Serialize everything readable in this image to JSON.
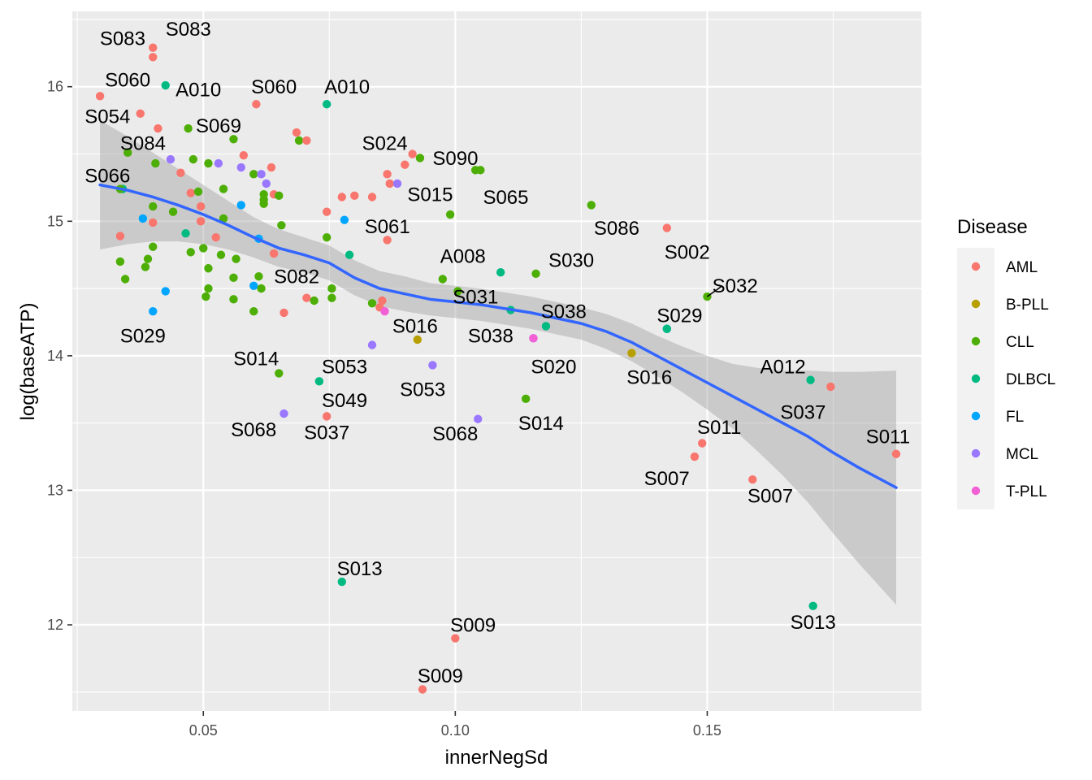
{
  "chart_data": {
    "type": "scatter",
    "xlabel": "innerNegSd",
    "ylabel": "log(baseATP)",
    "xlim": [
      0.024,
      0.1925
    ],
    "ylim": [
      11.36,
      16.56
    ],
    "xticks": [
      0.05,
      0.1,
      0.15
    ],
    "xtick_labels": [
      "0.05",
      "0.10",
      "0.15"
    ],
    "yticks": [
      12,
      13,
      14,
      15,
      16
    ],
    "ytick_labels": [
      "12",
      "13",
      "14",
      "15",
      "16"
    ],
    "grid": true,
    "legend": {
      "title": "Disease",
      "placement": "right",
      "entries": [
        {
          "name": "AML",
          "color": "#F8766D"
        },
        {
          "name": "B-PLL",
          "color": "#B79F00"
        },
        {
          "name": "CLL",
          "color": "#4DAF05"
        },
        {
          "name": "DLBCL",
          "color": "#00BA82"
        },
        {
          "name": "FL",
          "color": "#00A5FF"
        },
        {
          "name": "MCL",
          "color": "#9A77FF"
        },
        {
          "name": "T-PLL",
          "color": "#F35FD5"
        }
      ]
    },
    "colors": {
      "panel": "#EBEBEB",
      "grid": "#FFFFFF",
      "smooth_line": "#3366FF",
      "ribbon": "#999999"
    },
    "points": [
      {
        "x": 0.04,
        "y": 16.29,
        "g": "AML"
      },
      {
        "x": 0.04,
        "y": 16.22,
        "g": "AML"
      },
      {
        "x": 0.0295,
        "y": 15.93,
        "g": "AML"
      },
      {
        "x": 0.0425,
        "y": 16.01,
        "g": "DLBCL"
      },
      {
        "x": 0.0605,
        "y": 15.87,
        "g": "AML"
      },
      {
        "x": 0.0745,
        "y": 15.87,
        "g": "DLBCL"
      },
      {
        "x": 0.0375,
        "y": 15.8,
        "g": "AML"
      },
      {
        "x": 0.041,
        "y": 15.69,
        "g": "AML"
      },
      {
        "x": 0.047,
        "y": 15.69,
        "g": "CLL"
      },
      {
        "x": 0.056,
        "y": 15.61,
        "g": "CLL"
      },
      {
        "x": 0.0685,
        "y": 15.66,
        "g": "AML"
      },
      {
        "x": 0.069,
        "y": 15.6,
        "g": "CLL"
      },
      {
        "x": 0.0705,
        "y": 15.6,
        "g": "AML"
      },
      {
        "x": 0.035,
        "y": 15.51,
        "g": "CLL"
      },
      {
        "x": 0.0405,
        "y": 15.43,
        "g": "CLL"
      },
      {
        "x": 0.0435,
        "y": 15.46,
        "g": "MCL"
      },
      {
        "x": 0.048,
        "y": 15.46,
        "g": "CLL"
      },
      {
        "x": 0.051,
        "y": 15.43,
        "g": "CLL"
      },
      {
        "x": 0.053,
        "y": 15.43,
        "g": "MCL"
      },
      {
        "x": 0.058,
        "y": 15.49,
        "g": "AML"
      },
      {
        "x": 0.0455,
        "y": 15.36,
        "g": "AML"
      },
      {
        "x": 0.0575,
        "y": 15.4,
        "g": "MCL"
      },
      {
        "x": 0.06,
        "y": 15.35,
        "g": "CLL"
      },
      {
        "x": 0.0615,
        "y": 15.35,
        "g": "MCL"
      },
      {
        "x": 0.0635,
        "y": 15.4,
        "g": "AML"
      },
      {
        "x": 0.0625,
        "y": 15.28,
        "g": "MCL"
      },
      {
        "x": 0.034,
        "y": 15.24,
        "g": "DLBCL"
      },
      {
        "x": 0.0335,
        "y": 15.24,
        "g": "CLL"
      },
      {
        "x": 0.0475,
        "y": 15.21,
        "g": "AML"
      },
      {
        "x": 0.049,
        "y": 15.22,
        "g": "CLL"
      },
      {
        "x": 0.054,
        "y": 15.24,
        "g": "CLL"
      },
      {
        "x": 0.062,
        "y": 15.2,
        "g": "CLL"
      },
      {
        "x": 0.064,
        "y": 15.2,
        "g": "AML"
      },
      {
        "x": 0.065,
        "y": 15.19,
        "g": "CLL"
      },
      {
        "x": 0.062,
        "y": 15.16,
        "g": "CLL"
      },
      {
        "x": 0.062,
        "y": 15.13,
        "g": "CLL"
      },
      {
        "x": 0.04,
        "y": 15.11,
        "g": "CLL"
      },
      {
        "x": 0.0495,
        "y": 15.11,
        "g": "AML"
      },
      {
        "x": 0.0575,
        "y": 15.12,
        "g": "FL"
      },
      {
        "x": 0.044,
        "y": 15.07,
        "g": "CLL"
      },
      {
        "x": 0.038,
        "y": 15.02,
        "g": "FL"
      },
      {
        "x": 0.04,
        "y": 14.99,
        "g": "AML"
      },
      {
        "x": 0.0495,
        "y": 15.0,
        "g": "AML"
      },
      {
        "x": 0.054,
        "y": 15.02,
        "g": "CLL"
      },
      {
        "x": 0.0655,
        "y": 14.97,
        "g": "CLL"
      },
      {
        "x": 0.0335,
        "y": 14.89,
        "g": "AML"
      },
      {
        "x": 0.0525,
        "y": 14.88,
        "g": "AML"
      },
      {
        "x": 0.061,
        "y": 14.87,
        "g": "FL"
      },
      {
        "x": 0.0745,
        "y": 14.88,
        "g": "CLL"
      },
      {
        "x": 0.04,
        "y": 14.81,
        "g": "CLL"
      },
      {
        "x": 0.05,
        "y": 14.8,
        "g": "CLL"
      },
      {
        "x": 0.0475,
        "y": 14.77,
        "g": "CLL"
      },
      {
        "x": 0.039,
        "y": 14.72,
        "g": "CLL"
      },
      {
        "x": 0.0335,
        "y": 14.7,
        "g": "CLL"
      },
      {
        "x": 0.0465,
        "y": 14.91,
        "g": "DLBCL"
      },
      {
        "x": 0.0535,
        "y": 14.75,
        "g": "CLL"
      },
      {
        "x": 0.0565,
        "y": 14.72,
        "g": "CLL"
      },
      {
        "x": 0.064,
        "y": 14.76,
        "g": "AML"
      },
      {
        "x": 0.079,
        "y": 14.75,
        "g": "DLBCL"
      },
      {
        "x": 0.0385,
        "y": 14.66,
        "g": "CLL"
      },
      {
        "x": 0.051,
        "y": 14.65,
        "g": "CLL"
      },
      {
        "x": 0.0345,
        "y": 14.57,
        "g": "CLL"
      },
      {
        "x": 0.056,
        "y": 14.58,
        "g": "CLL"
      },
      {
        "x": 0.061,
        "y": 14.59,
        "g": "CLL"
      },
      {
        "x": 0.0425,
        "y": 14.48,
        "g": "FL"
      },
      {
        "x": 0.051,
        "y": 14.5,
        "g": "CLL"
      },
      {
        "x": 0.06,
        "y": 14.52,
        "g": "FL"
      },
      {
        "x": 0.0615,
        "y": 14.5,
        "g": "CLL"
      },
      {
        "x": 0.0755,
        "y": 14.5,
        "g": "CLL"
      },
      {
        "x": 0.0505,
        "y": 14.44,
        "g": "CLL"
      },
      {
        "x": 0.056,
        "y": 14.42,
        "g": "CLL"
      },
      {
        "x": 0.0705,
        "y": 14.43,
        "g": "AML"
      },
      {
        "x": 0.072,
        "y": 14.41,
        "g": "CLL"
      },
      {
        "x": 0.0755,
        "y": 14.43,
        "g": "CLL"
      },
      {
        "x": 0.04,
        "y": 14.33,
        "g": "FL"
      },
      {
        "x": 0.06,
        "y": 14.33,
        "g": "CLL"
      },
      {
        "x": 0.066,
        "y": 14.32,
        "g": "AML"
      },
      {
        "x": 0.0835,
        "y": 14.39,
        "g": "CLL"
      },
      {
        "x": 0.085,
        "y": 14.36,
        "g": "AML"
      },
      {
        "x": 0.0855,
        "y": 14.41,
        "g": "AML"
      },
      {
        "x": 0.086,
        "y": 14.33,
        "g": "T-PLL"
      },
      {
        "x": 0.0835,
        "y": 14.08,
        "g": "MCL"
      },
      {
        "x": 0.065,
        "y": 13.87,
        "g": "CLL"
      },
      {
        "x": 0.073,
        "y": 13.81,
        "g": "DLBCL"
      },
      {
        "x": 0.066,
        "y": 13.57,
        "g": "MCL"
      },
      {
        "x": 0.0745,
        "y": 13.55,
        "g": "AML"
      },
      {
        "x": 0.0775,
        "y": 15.18,
        "g": "AML"
      },
      {
        "x": 0.08,
        "y": 15.19,
        "g": "AML"
      },
      {
        "x": 0.0835,
        "y": 15.18,
        "g": "AML"
      },
      {
        "x": 0.0745,
        "y": 15.07,
        "g": "AML"
      },
      {
        "x": 0.078,
        "y": 15.01,
        "g": "FL"
      },
      {
        "x": 0.0865,
        "y": 14.86,
        "g": "AML"
      },
      {
        "x": 0.0865,
        "y": 15.35,
        "g": "AML"
      },
      {
        "x": 0.087,
        "y": 15.28,
        "g": "AML"
      },
      {
        "x": 0.0885,
        "y": 15.28,
        "g": "MCL"
      },
      {
        "x": 0.09,
        "y": 15.42,
        "g": "AML"
      },
      {
        "x": 0.0915,
        "y": 15.5,
        "g": "AML"
      },
      {
        "x": 0.093,
        "y": 15.47,
        "g": "CLL"
      },
      {
        "x": 0.104,
        "y": 15.38,
        "g": "CLL"
      },
      {
        "x": 0.105,
        "y": 15.38,
        "g": "CLL"
      },
      {
        "x": 0.099,
        "y": 15.05,
        "g": "CLL"
      },
      {
        "x": 0.127,
        "y": 15.12,
        "g": "CLL"
      },
      {
        "x": 0.142,
        "y": 14.95,
        "g": "AML"
      },
      {
        "x": 0.109,
        "y": 14.62,
        "g": "DLBCL"
      },
      {
        "x": 0.116,
        "y": 14.61,
        "g": "CLL"
      },
      {
        "x": 0.0975,
        "y": 14.57,
        "g": "CLL"
      },
      {
        "x": 0.1005,
        "y": 14.48,
        "g": "CLL"
      },
      {
        "x": 0.111,
        "y": 14.34,
        "g": "DLBCL"
      },
      {
        "x": 0.15,
        "y": 14.44,
        "g": "CLL"
      },
      {
        "x": 0.118,
        "y": 14.22,
        "g": "DLBCL"
      },
      {
        "x": 0.1155,
        "y": 14.13,
        "g": "MCL"
      },
      {
        "x": 0.1155,
        "y": 14.13,
        "g": "T-PLL"
      },
      {
        "x": 0.0925,
        "y": 14.12,
        "g": "B-PLL"
      },
      {
        "x": 0.0955,
        "y": 13.93,
        "g": "MCL"
      },
      {
        "x": 0.135,
        "y": 14.02,
        "g": "B-PLL"
      },
      {
        "x": 0.142,
        "y": 14.2,
        "g": "FL"
      },
      {
        "x": 0.142,
        "y": 14.2,
        "g": "DLBCL"
      },
      {
        "x": 0.114,
        "y": 13.68,
        "g": "CLL"
      },
      {
        "x": 0.1045,
        "y": 13.53,
        "g": "MCL"
      },
      {
        "x": 0.149,
        "y": 13.35,
        "g": "AML"
      },
      {
        "x": 0.1475,
        "y": 13.25,
        "g": "AML"
      },
      {
        "x": 0.159,
        "y": 13.08,
        "g": "AML"
      },
      {
        "x": 0.1705,
        "y": 13.82,
        "g": "DLBCL"
      },
      {
        "x": 0.1745,
        "y": 13.77,
        "g": "AML"
      },
      {
        "x": 0.1875,
        "y": 13.27,
        "g": "AML"
      },
      {
        "x": 0.0775,
        "y": 12.32,
        "g": "DLBCL"
      },
      {
        "x": 0.171,
        "y": 12.14,
        "g": "DLBCL"
      },
      {
        "x": 0.1,
        "y": 11.9,
        "g": "AML"
      },
      {
        "x": 0.0935,
        "y": 11.52,
        "g": "AML"
      }
    ],
    "smooth": [
      {
        "x": 0.0295,
        "y": 15.27
      },
      {
        "x": 0.035,
        "y": 15.23
      },
      {
        "x": 0.04,
        "y": 15.18
      },
      {
        "x": 0.045,
        "y": 15.12
      },
      {
        "x": 0.05,
        "y": 15.05
      },
      {
        "x": 0.055,
        "y": 14.97
      },
      {
        "x": 0.06,
        "y": 14.88
      },
      {
        "x": 0.065,
        "y": 14.8
      },
      {
        "x": 0.07,
        "y": 14.75
      },
      {
        "x": 0.075,
        "y": 14.69
      },
      {
        "x": 0.08,
        "y": 14.58
      },
      {
        "x": 0.085,
        "y": 14.5
      },
      {
        "x": 0.09,
        "y": 14.46
      },
      {
        "x": 0.095,
        "y": 14.42
      },
      {
        "x": 0.1,
        "y": 14.4
      },
      {
        "x": 0.105,
        "y": 14.38
      },
      {
        "x": 0.11,
        "y": 14.35
      },
      {
        "x": 0.115,
        "y": 14.32
      },
      {
        "x": 0.12,
        "y": 14.28
      },
      {
        "x": 0.125,
        "y": 14.24
      },
      {
        "x": 0.13,
        "y": 14.18
      },
      {
        "x": 0.135,
        "y": 14.1
      },
      {
        "x": 0.14,
        "y": 14.0
      },
      {
        "x": 0.145,
        "y": 13.9
      },
      {
        "x": 0.15,
        "y": 13.8
      },
      {
        "x": 0.155,
        "y": 13.7
      },
      {
        "x": 0.16,
        "y": 13.6
      },
      {
        "x": 0.165,
        "y": 13.5
      },
      {
        "x": 0.17,
        "y": 13.4
      },
      {
        "x": 0.175,
        "y": 13.28
      },
      {
        "x": 0.18,
        "y": 13.17
      },
      {
        "x": 0.1875,
        "y": 13.02
      }
    ],
    "ribbon_hw": [
      0.48,
      0.4,
      0.33,
      0.27,
      0.22,
      0.18,
      0.15,
      0.14,
      0.13,
      0.13,
      0.13,
      0.13,
      0.13,
      0.12,
      0.12,
      0.12,
      0.12,
      0.12,
      0.12,
      0.12,
      0.13,
      0.14,
      0.15,
      0.17,
      0.2,
      0.24,
      0.31,
      0.39,
      0.49,
      0.6,
      0.71,
      0.87
    ],
    "labels": [
      {
        "text": "S083",
        "x": 0.0385,
        "y": 16.31,
        "anchor": "end"
      },
      {
        "text": "S083",
        "x": 0.0425,
        "y": 16.38,
        "anchor": "start"
      },
      {
        "text": "S060",
        "x": 0.0395,
        "y": 16.0,
        "anchor": "end"
      },
      {
        "text": "A010",
        "x": 0.0445,
        "y": 15.93,
        "anchor": "start"
      },
      {
        "text": "S060",
        "x": 0.0595,
        "y": 15.95,
        "anchor": "start"
      },
      {
        "text": "A010",
        "x": 0.074,
        "y": 15.95,
        "anchor": "start"
      },
      {
        "text": "S054",
        "x": 0.0355,
        "y": 15.73,
        "anchor": "end"
      },
      {
        "text": "S069",
        "x": 0.0485,
        "y": 15.66,
        "anchor": "start"
      },
      {
        "text": "S084",
        "x": 0.0335,
        "y": 15.53,
        "anchor": "start"
      },
      {
        "text": "S024",
        "x": 0.0815,
        "y": 15.53,
        "anchor": "start"
      },
      {
        "text": "S090",
        "x": 0.0955,
        "y": 15.42,
        "anchor": "start"
      },
      {
        "text": "S066",
        "x": 0.0355,
        "y": 15.29,
        "anchor": "end"
      },
      {
        "text": "S015",
        "x": 0.0905,
        "y": 15.15,
        "anchor": "start"
      },
      {
        "text": "S065",
        "x": 0.1055,
        "y": 15.13,
        "anchor": "start"
      },
      {
        "text": "S061",
        "x": 0.082,
        "y": 14.91,
        "anchor": "start"
      },
      {
        "text": "S086",
        "x": 0.1275,
        "y": 14.9,
        "anchor": "start"
      },
      {
        "text": "S002",
        "x": 0.1415,
        "y": 14.72,
        "anchor": "start"
      },
      {
        "text": "A008",
        "x": 0.097,
        "y": 14.69,
        "anchor": "start"
      },
      {
        "text": "S030",
        "x": 0.1185,
        "y": 14.66,
        "anchor": "start"
      },
      {
        "text": "S082",
        "x": 0.064,
        "y": 14.54,
        "anchor": "start"
      },
      {
        "text": "S031",
        "x": 0.0995,
        "y": 14.39,
        "anchor": "start"
      },
      {
        "text": "S032",
        "x": 0.151,
        "y": 14.47,
        "anchor": "start"
      },
      {
        "text": "S038",
        "x": 0.117,
        "y": 14.28,
        "anchor": "start"
      },
      {
        "text": "S029",
        "x": 0.14,
        "y": 14.25,
        "anchor": "start"
      },
      {
        "text": "S016",
        "x": 0.0875,
        "y": 14.17,
        "anchor": "start"
      },
      {
        "text": "S038",
        "x": 0.1025,
        "y": 14.1,
        "anchor": "start"
      },
      {
        "text": "S029",
        "x": 0.038,
        "y": 14.1,
        "anchor": "middle"
      },
      {
        "text": "S014",
        "x": 0.065,
        "y": 13.93,
        "anchor": "end"
      },
      {
        "text": "S053",
        "x": 0.0735,
        "y": 13.87,
        "anchor": "start"
      },
      {
        "text": "S020",
        "x": 0.115,
        "y": 13.87,
        "anchor": "start"
      },
      {
        "text": "A012",
        "x": 0.1605,
        "y": 13.87,
        "anchor": "start"
      },
      {
        "text": "S016",
        "x": 0.134,
        "y": 13.79,
        "anchor": "start"
      },
      {
        "text": "S053",
        "x": 0.089,
        "y": 13.7,
        "anchor": "start"
      },
      {
        "text": "S049",
        "x": 0.0735,
        "y": 13.62,
        "anchor": "start"
      },
      {
        "text": "S037",
        "x": 0.1645,
        "y": 13.53,
        "anchor": "start"
      },
      {
        "text": "S014",
        "x": 0.1125,
        "y": 13.45,
        "anchor": "start"
      },
      {
        "text": "S068",
        "x": 0.0645,
        "y": 13.4,
        "anchor": "end"
      },
      {
        "text": "S037",
        "x": 0.0745,
        "y": 13.38,
        "anchor": "middle"
      },
      {
        "text": "S068",
        "x": 0.1,
        "y": 13.37,
        "anchor": "middle"
      },
      {
        "text": "S011",
        "x": 0.148,
        "y": 13.42,
        "anchor": "start"
      },
      {
        "text": "S011",
        "x": 0.1815,
        "y": 13.35,
        "anchor": "start"
      },
      {
        "text": "S007",
        "x": 0.1465,
        "y": 13.04,
        "anchor": "end"
      },
      {
        "text": "S007",
        "x": 0.158,
        "y": 12.91,
        "anchor": "start"
      },
      {
        "text": "S013",
        "x": 0.0765,
        "y": 12.37,
        "anchor": "start"
      },
      {
        "text": "S013",
        "x": 0.171,
        "y": 11.97,
        "anchor": "middle"
      },
      {
        "text": "S009",
        "x": 0.099,
        "y": 11.95,
        "anchor": "start"
      },
      {
        "text": "S009",
        "x": 0.0925,
        "y": 11.57,
        "anchor": "start"
      }
    ],
    "label_segments": [
      {
        "x1": 0.15,
        "y1": 14.44,
        "x2": 0.153,
        "y2": 14.52
      }
    ]
  }
}
